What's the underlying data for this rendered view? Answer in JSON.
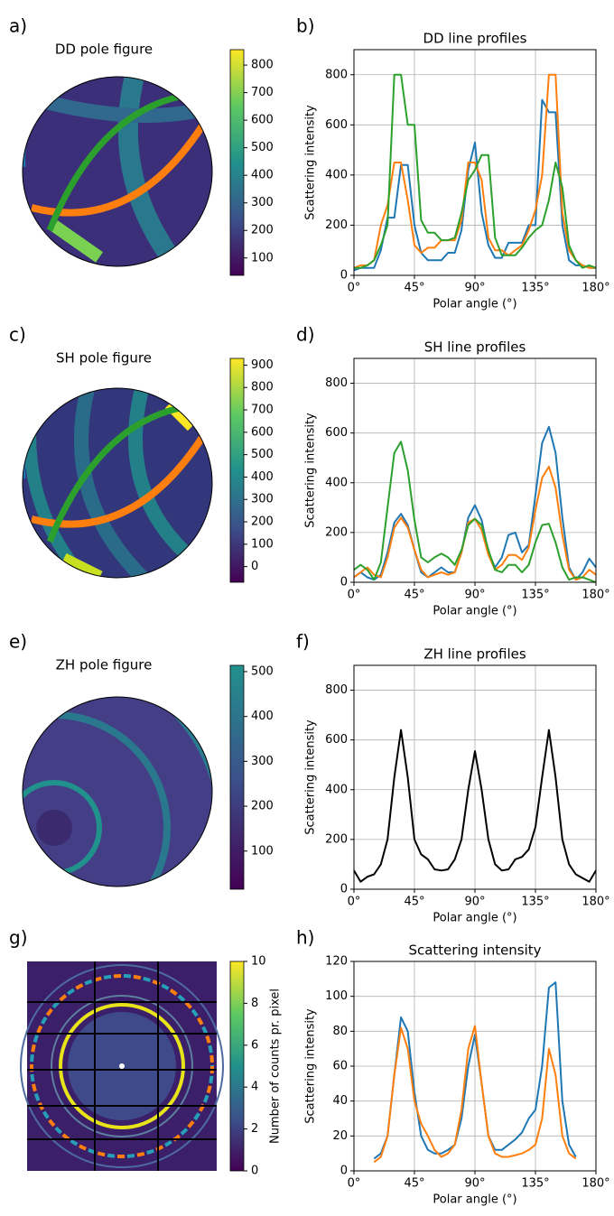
{
  "chart_data": [
    {
      "type": "image",
      "panel_label": "a)",
      "title": "DD pole figure",
      "colorbar": {
        "lim": [
          37,
          856
        ],
        "ticks": [
          100,
          200,
          300,
          400,
          500,
          600,
          700,
          800
        ]
      }
    },
    {
      "type": "line",
      "panel_label": "b)",
      "title": "DD line profiles",
      "xlabel": "Polar angle (°)",
      "ylabel": "Scattering intensity",
      "grid": true,
      "x": [
        0,
        5,
        10,
        15,
        20,
        25,
        30,
        35,
        40,
        45,
        50,
        55,
        60,
        65,
        70,
        75,
        80,
        85,
        90,
        95,
        100,
        105,
        110,
        115,
        120,
        125,
        130,
        135,
        140,
        145,
        150,
        155,
        160,
        165,
        170,
        175,
        180
      ],
      "xlim": [
        0,
        180
      ],
      "ylim": [
        0,
        900
      ],
      "xticks": [
        {
          "value": 0,
          "label": "0°"
        },
        {
          "value": 45,
          "label": "45°"
        },
        {
          "value": 90,
          "label": "90°"
        },
        {
          "value": 135,
          "label": "135°"
        },
        {
          "value": 180,
          "label": "180°"
        }
      ],
      "yticks": [
        0,
        200,
        400,
        600,
        800
      ],
      "series": [
        {
          "color": "#1f77b4",
          "values": [
            20,
            30,
            30,
            30,
            100,
            230,
            230,
            440,
            440,
            200,
            90,
            60,
            60,
            60,
            90,
            90,
            180,
            420,
            530,
            250,
            120,
            70,
            70,
            130,
            130,
            130,
            200,
            200,
            700,
            650,
            650,
            200,
            60,
            40,
            40,
            30,
            30
          ]
        },
        {
          "color": "#ff7f0e",
          "values": [
            30,
            40,
            40,
            60,
            200,
            280,
            450,
            450,
            300,
            120,
            90,
            110,
            110,
            140,
            140,
            140,
            220,
            450,
            450,
            380,
            150,
            100,
            100,
            80,
            100,
            120,
            180,
            260,
            400,
            800,
            800,
            250,
            100,
            60,
            40,
            30,
            30
          ]
        },
        {
          "color": "#2ca02c",
          "values": [
            30,
            30,
            40,
            60,
            120,
            200,
            800,
            800,
            600,
            600,
            220,
            170,
            170,
            140,
            140,
            150,
            250,
            380,
            420,
            480,
            480,
            150,
            80,
            80,
            80,
            110,
            150,
            180,
            200,
            300,
            450,
            350,
            120,
            60,
            30,
            40,
            30
          ]
        }
      ]
    },
    {
      "type": "image",
      "panel_label": "c)",
      "title": "SH pole figure",
      "colorbar": {
        "lim": [
          -70,
          930
        ],
        "ticks": [
          0,
          100,
          200,
          300,
          400,
          500,
          600,
          700,
          800,
          900
        ]
      }
    },
    {
      "type": "line",
      "panel_label": "d)",
      "title": "SH line profiles",
      "xlabel": "Polar angle (°)",
      "ylabel": "Scattering intensity",
      "grid": true,
      "x": [
        0,
        5,
        10,
        15,
        20,
        25,
        30,
        35,
        40,
        45,
        50,
        55,
        60,
        65,
        70,
        75,
        80,
        85,
        90,
        95,
        100,
        105,
        110,
        115,
        120,
        125,
        130,
        135,
        140,
        145,
        150,
        155,
        160,
        165,
        170,
        175,
        180
      ],
      "xlim": [
        0,
        180
      ],
      "ylim": [
        0,
        900
      ],
      "xticks": [
        {
          "value": 0,
          "label": "0°"
        },
        {
          "value": 45,
          "label": "45°"
        },
        {
          "value": 90,
          "label": "90°"
        },
        {
          "value": 135,
          "label": "135°"
        },
        {
          "value": 180,
          "label": "180°"
        }
      ],
      "yticks": [
        0,
        200,
        400,
        600,
        800
      ],
      "series": [
        {
          "color": "#1f77b4",
          "values": [
            20,
            40,
            20,
            10,
            30,
            120,
            240,
            275,
            230,
            130,
            40,
            20,
            40,
            60,
            40,
            40,
            120,
            260,
            310,
            250,
            120,
            60,
            100,
            190,
            200,
            120,
            150,
            350,
            560,
            625,
            520,
            260,
            60,
            10,
            40,
            95,
            60
          ]
        },
        {
          "color": "#ff7f0e",
          "values": [
            20,
            40,
            60,
            30,
            20,
            100,
            220,
            260,
            220,
            130,
            50,
            20,
            30,
            40,
            30,
            40,
            120,
            240,
            255,
            210,
            110,
            50,
            70,
            110,
            110,
            90,
            140,
            290,
            420,
            465,
            380,
            190,
            50,
            10,
            20,
            50,
            30
          ]
        },
        {
          "color": "#2ca02c",
          "values": [
            50,
            70,
            50,
            10,
            80,
            300,
            520,
            565,
            450,
            250,
            100,
            80,
            100,
            115,
            100,
            70,
            130,
            230,
            255,
            230,
            130,
            50,
            40,
            70,
            70,
            40,
            70,
            160,
            230,
            235,
            160,
            60,
            10,
            20,
            20,
            10,
            0
          ]
        }
      ]
    },
    {
      "type": "image",
      "panel_label": "e)",
      "title": "ZH pole figure",
      "colorbar": {
        "lim": [
          15,
          514
        ],
        "ticks": [
          100,
          200,
          300,
          400,
          500
        ]
      }
    },
    {
      "type": "line",
      "panel_label": "f)",
      "title": "ZH line profiles",
      "xlabel": "Polar angle (°)",
      "ylabel": "Scattering intensity",
      "grid": true,
      "x": [
        0,
        5,
        10,
        15,
        20,
        25,
        30,
        35,
        40,
        45,
        50,
        55,
        60,
        65,
        70,
        75,
        80,
        85,
        90,
        95,
        100,
        105,
        110,
        115,
        120,
        125,
        130,
        135,
        140,
        145,
        150,
        155,
        160,
        165,
        170,
        175,
        180
      ],
      "xlim": [
        0,
        180
      ],
      "ylim": [
        0,
        900
      ],
      "xticks": [
        {
          "value": 0,
          "label": "0°"
        },
        {
          "value": 45,
          "label": "45°"
        },
        {
          "value": 90,
          "label": "90°"
        },
        {
          "value": 135,
          "label": "135°"
        },
        {
          "value": 180,
          "label": "180°"
        }
      ],
      "yticks": [
        0,
        200,
        400,
        600,
        800
      ],
      "series": [
        {
          "color": "#000000",
          "values": [
            75,
            30,
            50,
            60,
            100,
            200,
            450,
            640,
            450,
            200,
            140,
            120,
            80,
            75,
            80,
            120,
            200,
            400,
            555,
            400,
            200,
            100,
            75,
            80,
            120,
            130,
            160,
            250,
            450,
            640,
            450,
            200,
            100,
            60,
            45,
            30,
            75
          ]
        }
      ]
    },
    {
      "type": "image",
      "panel_label": "g)",
      "colorbar": {
        "label": "Number of counts pr. pixel",
        "lim": [
          0,
          10
        ],
        "ticks": [
          0,
          2,
          4,
          6,
          8,
          10
        ]
      }
    },
    {
      "type": "line",
      "panel_label": "h)",
      "title": "Scattering intensity",
      "xlabel": "Polar angle (°)",
      "ylabel": "Scattering intensity",
      "grid": true,
      "x": [
        15,
        20,
        25,
        30,
        35,
        40,
        45,
        50,
        55,
        60,
        65,
        70,
        75,
        80,
        85,
        90,
        95,
        100,
        105,
        110,
        115,
        120,
        125,
        130,
        135,
        140,
        145,
        150,
        155,
        160,
        165
      ],
      "xlim": [
        0,
        180
      ],
      "ylim": [
        0,
        120
      ],
      "xticks": [
        {
          "value": 0,
          "label": "0°"
        },
        {
          "value": 45,
          "label": "45°"
        },
        {
          "value": 90,
          "label": "90°"
        },
        {
          "value": 135,
          "label": "135°"
        },
        {
          "value": 180,
          "label": "180°"
        }
      ],
      "yticks": [
        0,
        20,
        40,
        60,
        80,
        100,
        120
      ],
      "series": [
        {
          "color": "#1f77b4",
          "values": [
            7,
            10,
            20,
            55,
            88,
            80,
            45,
            20,
            12,
            10,
            10,
            12,
            15,
            30,
            60,
            78,
            50,
            20,
            12,
            12,
            15,
            18,
            22,
            30,
            35,
            60,
            105,
            108,
            40,
            15,
            8
          ]
        },
        {
          "color": "#ff7f0e",
          "values": [
            5,
            8,
            20,
            55,
            82,
            70,
            40,
            27,
            20,
            12,
            8,
            10,
            15,
            35,
            70,
            83,
            50,
            20,
            10,
            8,
            8,
            9,
            10,
            12,
            15,
            30,
            70,
            55,
            20,
            10,
            7
          ]
        }
      ]
    }
  ]
}
